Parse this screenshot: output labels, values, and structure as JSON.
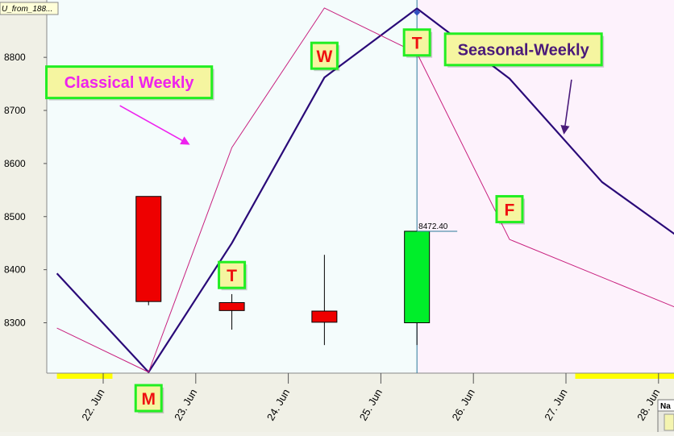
{
  "window_tag": "U_from_188...",
  "nav_label": "Na",
  "colors": {
    "bg_left": "#f4fcfc",
    "bg_right": "#fdf2fc",
    "axis_bg": "#f0f0e6",
    "seasonal_line": "#2a0a78",
    "classical_line": "#c8207e",
    "bull_candle": "#00ee2a",
    "bear_candle": "#ee0000",
    "label_fill": "#f5f5a0",
    "label_border": "#22ee22",
    "label_text": "#ee1111",
    "classical_text": "#ee22ee",
    "seasonal_text": "#4a1a7a",
    "highlight": "#ffff00"
  },
  "chart_data": {
    "type": "line",
    "x_ticks": [
      "22. Jun",
      "23. Jun",
      "24. Jun",
      "25. Jun",
      "26. Jun",
      "27. Jun",
      "28. Jun"
    ],
    "y_ticks": [
      8300,
      8400,
      8500,
      8600,
      8700,
      8800
    ],
    "ylim": [
      8205,
      8900
    ],
    "xlim": [
      21.5,
      28.66
    ],
    "series": [
      {
        "name": "Seasonal-Weekly",
        "color_key": "seasonal_line",
        "points": [
          [
            21.5,
            8393
          ],
          [
            22.49,
            8207
          ],
          [
            23.39,
            8450
          ],
          [
            24.39,
            8762
          ],
          [
            25.39,
            8892
          ],
          [
            26.39,
            8760
          ],
          [
            27.39,
            8565
          ],
          [
            28.59,
            8415
          ],
          [
            28.66,
            8388
          ]
        ]
      },
      {
        "name": "Classical Weekly",
        "color_key": "classical_line",
        "points": [
          [
            21.5,
            8290
          ],
          [
            22.49,
            8207
          ],
          [
            23.39,
            8630
          ],
          [
            24.39,
            8893
          ],
          [
            25.39,
            8808
          ],
          [
            26.39,
            8457
          ],
          [
            28.66,
            8295
          ]
        ]
      }
    ],
    "candles": [
      {
        "x": 22.49,
        "open": 8538,
        "close": 8340,
        "high": 8538,
        "low": 8333
      },
      {
        "x": 23.39,
        "open": 8338,
        "close": 8323,
        "high": 8354,
        "low": 8287
      },
      {
        "x": 24.39,
        "open": 8322,
        "close": 8301,
        "high": 8428,
        "low": 8258
      },
      {
        "x": 25.39,
        "open": 8300,
        "close": 8472.4,
        "high": 8472.4,
        "low": 8258
      }
    ],
    "price_label": {
      "text": "8472.40",
      "value": 8472.4,
      "x": 25.39
    },
    "time_line_x": 25.39,
    "turning_points": [
      {
        "letter": "M",
        "x": 22.49,
        "position": "below-axis"
      },
      {
        "letter": "T",
        "x": 23.39,
        "value": 8390
      },
      {
        "letter": "W",
        "x": 24.39,
        "value": 8803
      },
      {
        "letter": "T",
        "x": 25.39,
        "value": 8828
      },
      {
        "letter": "F",
        "x": 26.39,
        "value": 8514
      }
    ],
    "annotations": [
      {
        "text": "Classical Weekly",
        "style": "classical",
        "x": 22.28,
        "value": 8753
      },
      {
        "text": "Seasonal-Weekly",
        "style": "seasonal",
        "x": 26.54,
        "value": 8815
      }
    ],
    "arrows": [
      {
        "style": "classical",
        "from": [
          22.18,
          8709
        ],
        "to": [
          22.92,
          8637
        ]
      },
      {
        "style": "seasonal",
        "from": [
          27.06,
          8758
        ],
        "to": [
          26.98,
          8658
        ]
      }
    ],
    "highlight_bands": [
      [
        21.5,
        22.1
      ],
      [
        27.1,
        28.2
      ]
    ],
    "bg_split_x": 25.39,
    "grid": false,
    "legend": "none"
  }
}
